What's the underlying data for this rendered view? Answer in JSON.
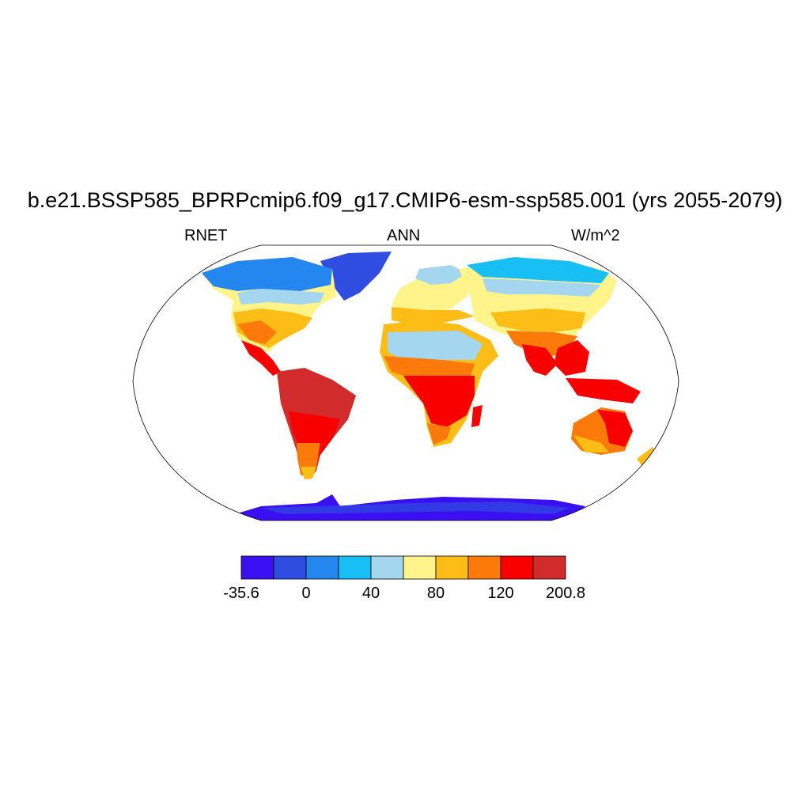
{
  "title": "b.e21.BSSP585_BPRPcmip6.f09_g17.CMIP6-esm-ssp585.001 (yrs 2055-2079)",
  "left_label": "RNET",
  "center_label": "ANN",
  "right_label": "W/m^2",
  "colorbar": {
    "colors": [
      "#3a10f2",
      "#2f4de0",
      "#2487f0",
      "#17bff5",
      "#a5d6f0",
      "#fff48a",
      "#fcbd17",
      "#fc7a09",
      "#f90000",
      "#d22b2b"
    ],
    "tick_labels": [
      "-35.6",
      "0",
      "40",
      "80",
      "120",
      "200.8"
    ]
  },
  "map": {
    "projection": "Robinson",
    "land_fill_scheme": "annual net radiation, blue (low, high latitudes/Antarctica/Greenland) to dark red (high, tropics)",
    "ocean_color": "#ffffff"
  }
}
